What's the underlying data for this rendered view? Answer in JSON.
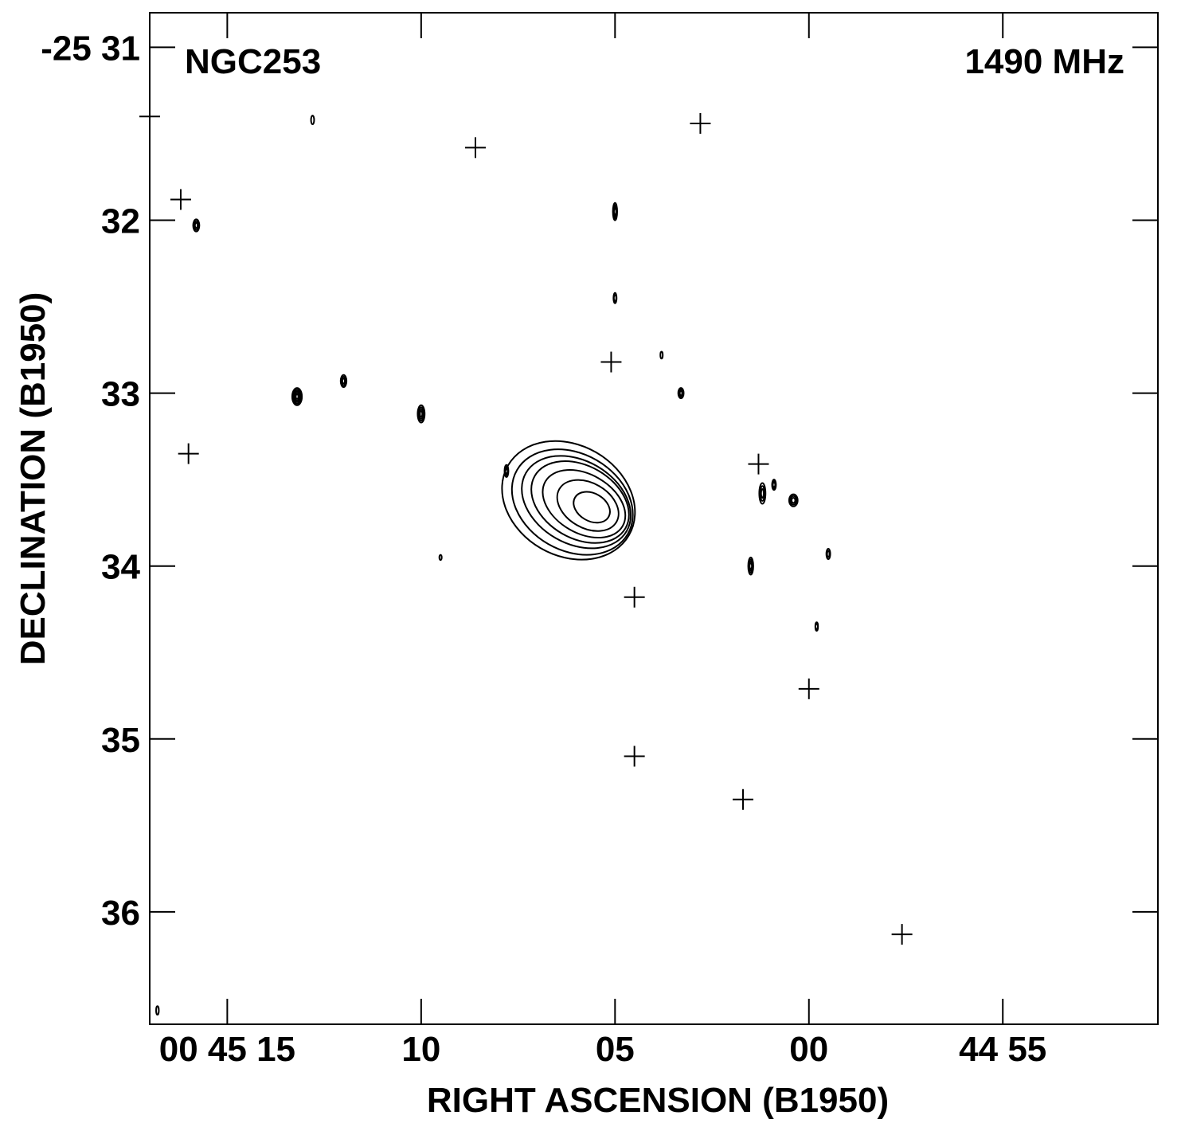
{
  "chart_data": {
    "type": "contour",
    "annotations": {
      "left": "NGC253",
      "right": "1490 MHz"
    },
    "xlabel": "RIGHT ASCENSION (B1950)",
    "ylabel": "DECLINATION (B1950)",
    "x_unit": "seconds of RA past 00h44m",
    "y_unit": "arcminutes (dec = -25 deg minus value)",
    "xlim": [
      77.0,
      51.0
    ],
    "ylim": [
      30.8,
      36.65
    ],
    "x_ticks": [
      {
        "value": 75,
        "label": "00 45 15"
      },
      {
        "value": 70,
        "label": "10"
      },
      {
        "value": 65,
        "label": "05"
      },
      {
        "value": 60,
        "label": "00"
      },
      {
        "value": 55,
        "label": "44 55"
      }
    ],
    "y_ticks": [
      {
        "value": 31,
        "label": "-25 31"
      },
      {
        "value": 32,
        "label": "32"
      },
      {
        "value": 33,
        "label": "33"
      },
      {
        "value": 34,
        "label": "34"
      },
      {
        "value": 35,
        "label": "35"
      },
      {
        "value": 36,
        "label": "36"
      }
    ],
    "grid": false,
    "crosses": [
      {
        "x": 77.0,
        "y": 31.4
      },
      {
        "x": 76.2,
        "y": 31.88
      },
      {
        "x": 76.0,
        "y": 33.35
      },
      {
        "x": 68.6,
        "y": 31.58
      },
      {
        "x": 62.8,
        "y": 31.44
      },
      {
        "x": 65.1,
        "y": 32.82
      },
      {
        "x": 61.3,
        "y": 33.41
      },
      {
        "x": 64.5,
        "y": 34.18
      },
      {
        "x": 64.5,
        "y": 35.1
      },
      {
        "x": 60.0,
        "y": 34.71
      },
      {
        "x": 61.7,
        "y": 35.35
      },
      {
        "x": 57.6,
        "y": 36.13
      }
    ],
    "galaxy_contours": [
      {
        "cx": 66.2,
        "cy": 33.62,
        "rx": 3.6,
        "ry": 0.32,
        "angle": 30
      },
      {
        "cx": 66.1,
        "cy": 33.63,
        "rx": 3.3,
        "ry": 0.28,
        "angle": 30
      },
      {
        "cx": 66.0,
        "cy": 33.63,
        "rx": 3.0,
        "ry": 0.24,
        "angle": 30
      },
      {
        "cx": 65.9,
        "cy": 33.63,
        "rx": 2.7,
        "ry": 0.21,
        "angle": 30
      },
      {
        "cx": 65.8,
        "cy": 33.64,
        "rx": 2.3,
        "ry": 0.17,
        "angle": 30
      },
      {
        "cx": 65.7,
        "cy": 33.65,
        "rx": 1.7,
        "ry": 0.13,
        "angle": 30
      },
      {
        "cx": 65.6,
        "cy": 33.66,
        "rx": 1.0,
        "ry": 0.08,
        "angle": 30
      }
    ],
    "sources": [
      {
        "x": 70.0,
        "y": 33.12,
        "rx": 0.18,
        "ry": 0.05,
        "levels": 4
      },
      {
        "x": 73.2,
        "y": 33.02,
        "rx": 0.25,
        "ry": 0.05,
        "levels": 5
      },
      {
        "x": 72.0,
        "y": 32.93,
        "rx": 0.15,
        "ry": 0.035,
        "levels": 3
      },
      {
        "x": 75.8,
        "y": 32.03,
        "rx": 0.16,
        "ry": 0.035,
        "levels": 3
      },
      {
        "x": 72.8,
        "y": 31.42,
        "rx": 0.08,
        "ry": 0.025,
        "levels": 1
      },
      {
        "x": 65.0,
        "y": 31.95,
        "rx": 0.11,
        "ry": 0.05,
        "levels": 4
      },
      {
        "x": 65.0,
        "y": 32.45,
        "rx": 0.08,
        "ry": 0.03,
        "levels": 2
      },
      {
        "x": 63.3,
        "y": 33.0,
        "rx": 0.14,
        "ry": 0.03,
        "levels": 3
      },
      {
        "x": 61.5,
        "y": 34.0,
        "rx": 0.13,
        "ry": 0.05,
        "levels": 4
      },
      {
        "x": 60.9,
        "y": 33.53,
        "rx": 0.1,
        "ry": 0.03,
        "levels": 3
      },
      {
        "x": 60.4,
        "y": 33.62,
        "rx": 0.22,
        "ry": 0.035,
        "levels": 3
      },
      {
        "x": 61.2,
        "y": 33.58,
        "rx": 0.16,
        "ry": 0.06,
        "levels": 3
      },
      {
        "x": 59.5,
        "y": 33.93,
        "rx": 0.1,
        "ry": 0.03,
        "levels": 2
      },
      {
        "x": 59.8,
        "y": 34.35,
        "rx": 0.07,
        "ry": 0.025,
        "levels": 2
      },
      {
        "x": 63.8,
        "y": 32.78,
        "rx": 0.06,
        "ry": 0.02,
        "levels": 1
      },
      {
        "x": 69.5,
        "y": 33.95,
        "rx": 0.06,
        "ry": 0.015,
        "levels": 1
      },
      {
        "x": 67.8,
        "y": 33.45,
        "rx": 0.1,
        "ry": 0.035,
        "levels": 3
      },
      {
        "x": 76.8,
        "y": 36.57,
        "rx": 0.07,
        "ry": 0.025,
        "levels": 1
      }
    ]
  }
}
